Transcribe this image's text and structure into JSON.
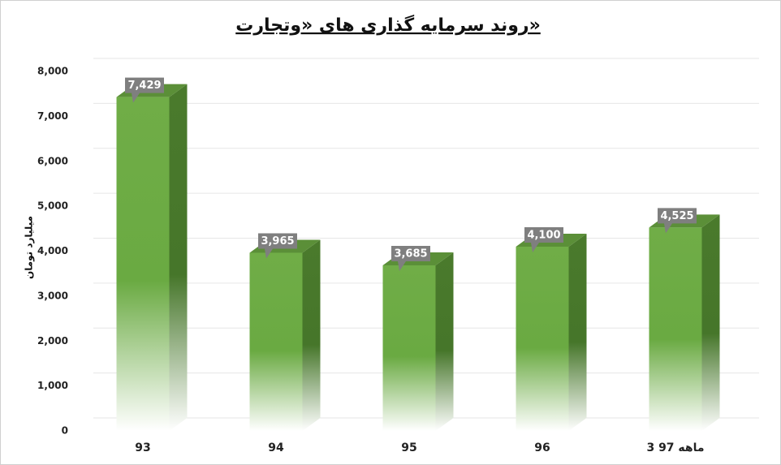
{
  "chart_data": {
    "type": "bar3d",
    "title": "روند سرمایه گذاری های «وتجارت»",
    "y_label": "میلیارد تومان",
    "categories": [
      "93",
      "94",
      "95",
      "96",
      "3 ماهه 97"
    ],
    "values": [
      7429,
      3965,
      3685,
      4100,
      4525
    ],
    "value_labels": [
      "7,429",
      "3,965",
      "3,685",
      "4,100",
      "4,525"
    ],
    "color": "#70ad47",
    "ylim": [
      0,
      8000
    ],
    "yticks": [
      0,
      {
        "value": 1000,
        "label": "1,000"
      },
      {
        "value": 2000,
        "label": "2,000"
      },
      {
        "value": 3000,
        "label": "3,000"
      },
      {
        "value": 4000,
        "label": "4,000"
      },
      {
        "value": 5000,
        "label": "5,000"
      },
      {
        "value": 6000,
        "label": "6,000"
      },
      {
        "value": 7000,
        "label": "7,000"
      },
      {
        "value": 8000,
        "label": "8,000"
      }
    ],
    "grid": true
  }
}
